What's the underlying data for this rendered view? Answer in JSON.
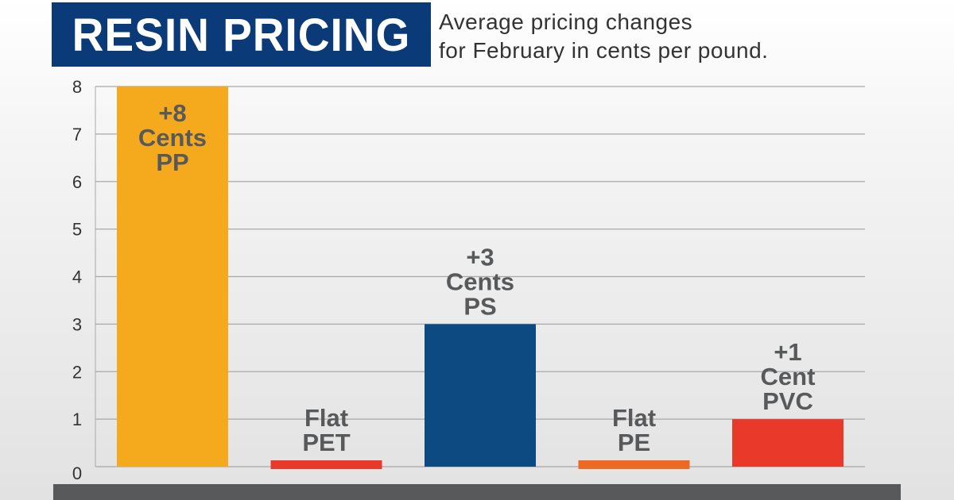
{
  "chart_data": {
    "type": "bar",
    "title": "RESIN PRICING",
    "subtitle": [
      "Average pricing changes",
      "for February in cents per pound."
    ],
    "categories": [
      "PP",
      "PET",
      "PS",
      "PE",
      "PVC"
    ],
    "values": [
      8,
      0,
      3,
      0,
      1
    ],
    "data_labels": [
      [
        "+8",
        "Cents",
        "PP"
      ],
      [
        "Flat",
        "PET"
      ],
      [
        "+3",
        "Cents",
        "PS"
      ],
      [
        "Flat",
        "PE"
      ],
      [
        "+1",
        "Cent",
        "PVC"
      ]
    ],
    "colors": [
      "#f5aa1e",
      "#e8392b",
      "#0d4a82",
      "#ee6a24",
      "#e8392b"
    ],
    "ylim": [
      0,
      8
    ],
    "yticks": [
      0,
      1,
      2,
      3,
      4,
      5,
      6,
      7,
      8
    ],
    "grid": true,
    "xlabel": "",
    "ylabel": ""
  }
}
